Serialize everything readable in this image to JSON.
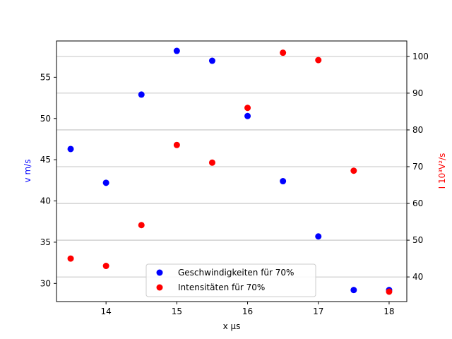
{
  "chart_data": {
    "type": "scatter",
    "title": "",
    "xlabel": "x μs",
    "ylabel_left": "v m/s",
    "ylabel_right": "I 10³V²/s",
    "xlim": [
      13.3,
      18.25
    ],
    "ylim_left": [
      27.8,
      59.4
    ],
    "ylim_right": [
      33.3,
      104.2
    ],
    "x_ticks": [
      14,
      15,
      16,
      17,
      18
    ],
    "y_ticks_left": [
      30,
      35,
      40,
      45,
      50,
      55
    ],
    "y_ticks_right": [
      40,
      50,
      60,
      70,
      80,
      90,
      100
    ],
    "grid": "horizontal, right axis",
    "legend_position": "lower-center",
    "series": [
      {
        "name": "Geschwindigkeiten für 70%",
        "axis": "left",
        "color": "#0000ff",
        "x": [
          13.5,
          14.0,
          14.5,
          15.0,
          15.5,
          16.0,
          16.5,
          17.0,
          17.5,
          18.0
        ],
        "y": [
          46.3,
          42.2,
          52.9,
          58.2,
          57.0,
          50.3,
          42.4,
          35.7,
          29.2,
          29.2
        ]
      },
      {
        "name": "Intensitäten für 70%",
        "axis": "right",
        "color": "#ff0000",
        "x": [
          13.5,
          14.0,
          14.5,
          15.0,
          15.5,
          16.0,
          16.5,
          17.0,
          17.5,
          18.0
        ],
        "y": [
          45.0,
          43.0,
          54.1,
          75.9,
          71.1,
          86.0,
          101.0,
          99.0,
          68.9,
          36.0
        ]
      }
    ]
  }
}
